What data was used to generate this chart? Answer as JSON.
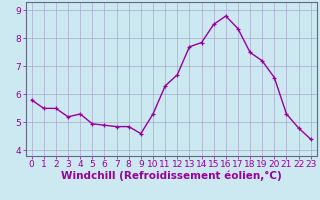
{
  "x": [
    0,
    1,
    2,
    3,
    4,
    5,
    6,
    7,
    8,
    9,
    10,
    11,
    12,
    13,
    14,
    15,
    16,
    17,
    18,
    19,
    20,
    21,
    22,
    23
  ],
  "y": [
    5.8,
    5.5,
    5.5,
    5.2,
    5.3,
    4.95,
    4.9,
    4.85,
    4.85,
    4.6,
    5.3,
    6.3,
    6.7,
    7.7,
    7.85,
    8.5,
    8.8,
    8.35,
    7.5,
    7.2,
    6.6,
    5.3,
    4.8,
    4.4
  ],
  "line_color": "#990099",
  "marker": "+",
  "background_color": "#cce8f0",
  "grid_color": "#aaaacc",
  "xlabel": "Windchill (Refroidissement éolien,°C)",
  "ylabel": "",
  "ylim": [
    3.8,
    9.3
  ],
  "xlim": [
    -0.5,
    23.5
  ],
  "yticks": [
    4,
    5,
    6,
    7,
    8,
    9
  ],
  "xticks": [
    0,
    1,
    2,
    3,
    4,
    5,
    6,
    7,
    8,
    9,
    10,
    11,
    12,
    13,
    14,
    15,
    16,
    17,
    18,
    19,
    20,
    21,
    22,
    23
  ],
  "tick_label_fontsize": 6.5,
  "xlabel_fontsize": 7.5,
  "line_width": 1.0,
  "marker_size": 3.5,
  "spine_color": "#666688"
}
